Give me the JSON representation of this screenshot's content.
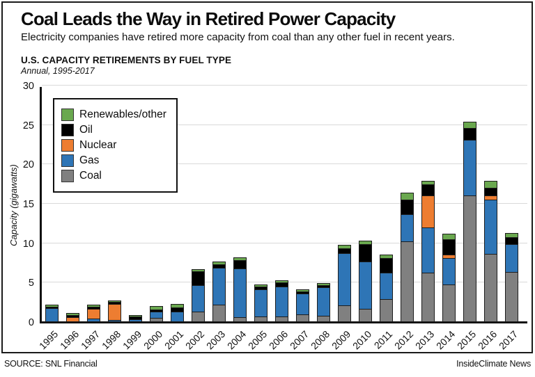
{
  "header": {
    "title": "Coal Leads the Way in Retired Power Capacity",
    "subtitle": "Electricity companies have retired more capacity from coal than any other fuel in recent years."
  },
  "chart_header": {
    "heading": "U.S. CAPACITY RETIREMENTS BY FUEL TYPE",
    "subheading": "Annual, 1995-2017"
  },
  "footer": {
    "source": "SOURCE: SNL Financial",
    "credit": "InsideClimate News"
  },
  "colors": {
    "coal": "#808080",
    "gas": "#2e75b6",
    "nuclear": "#ed7d31",
    "oil": "#000000",
    "renewables": "#6aa84f",
    "gridline": "#d9d9d9",
    "axis": "#111111"
  },
  "chart_data": {
    "type": "bar",
    "variant": "stacked",
    "title": "U.S. CAPACITY RETIREMENTS BY FUEL TYPE",
    "subtitle": "Annual, 1995-2017",
    "xlabel": "",
    "ylabel": "Capacity (gigawatts)",
    "ylim": [
      0,
      30
    ],
    "y_ticks": [
      0,
      5,
      10,
      15,
      20,
      25,
      30
    ],
    "grid": true,
    "legend_position": "top-left",
    "legend_order": [
      "Renewables/other",
      "Oil",
      "Nuclear",
      "Gas",
      "Coal"
    ],
    "categories": [
      "1995",
      "1996",
      "1997",
      "1998",
      "1999",
      "2000",
      "2001",
      "2002",
      "2003",
      "2004",
      "2005",
      "2006",
      "2007",
      "2008",
      "2009",
      "2010",
      "2011",
      "2012",
      "2013",
      "2014",
      "2015",
      "2016",
      "2017"
    ],
    "series": [
      {
        "name": "Coal",
        "color_key": "coal",
        "values": [
          0,
          0,
          0,
          0,
          0,
          0.4,
          0,
          1.25,
          2.1,
          0.5,
          0.6,
          0.6,
          0.9,
          0.7,
          2.05,
          1.6,
          2.8,
          10.15,
          6.2,
          4.7,
          16.0,
          8.55,
          6.25
        ]
      },
      {
        "name": "Gas",
        "color_key": "gas",
        "values": [
          1.65,
          0,
          0.35,
          0.15,
          0.3,
          0.85,
          1.25,
          3.3,
          4.7,
          6.2,
          3.5,
          3.8,
          2.6,
          3.65,
          6.6,
          6.0,
          3.4,
          3.4,
          5.75,
          3.3,
          7.05,
          6.9,
          3.55
        ]
      },
      {
        "name": "Nuclear",
        "color_key": "nuclear",
        "values": [
          0,
          0.55,
          1.25,
          2.05,
          0,
          0,
          0,
          0,
          0,
          0,
          0,
          0,
          0,
          0,
          0,
          0,
          0,
          0,
          4.0,
          0.5,
          0,
          0.55,
          0
        ]
      },
      {
        "name": "Oil",
        "color_key": "oil",
        "values": [
          0.2,
          0.25,
          0.25,
          0.25,
          0.3,
          0.25,
          0.5,
          1.8,
          0.45,
          1.05,
          0.3,
          0.55,
          0.3,
          0.25,
          0.65,
          2.2,
          1.85,
          1.9,
          1.45,
          1.9,
          1.45,
          0.95,
          0.85
        ]
      },
      {
        "name": "Renewables/other",
        "color_key": "renewables",
        "values": [
          0.2,
          0.15,
          0.15,
          0.15,
          0.1,
          0.35,
          0.35,
          0.15,
          0.25,
          0.25,
          0.2,
          0.2,
          0.2,
          0.2,
          0.3,
          0.35,
          0.35,
          0.75,
          0.35,
          0.65,
          0.75,
          0.8,
          0.45
        ]
      }
    ]
  }
}
